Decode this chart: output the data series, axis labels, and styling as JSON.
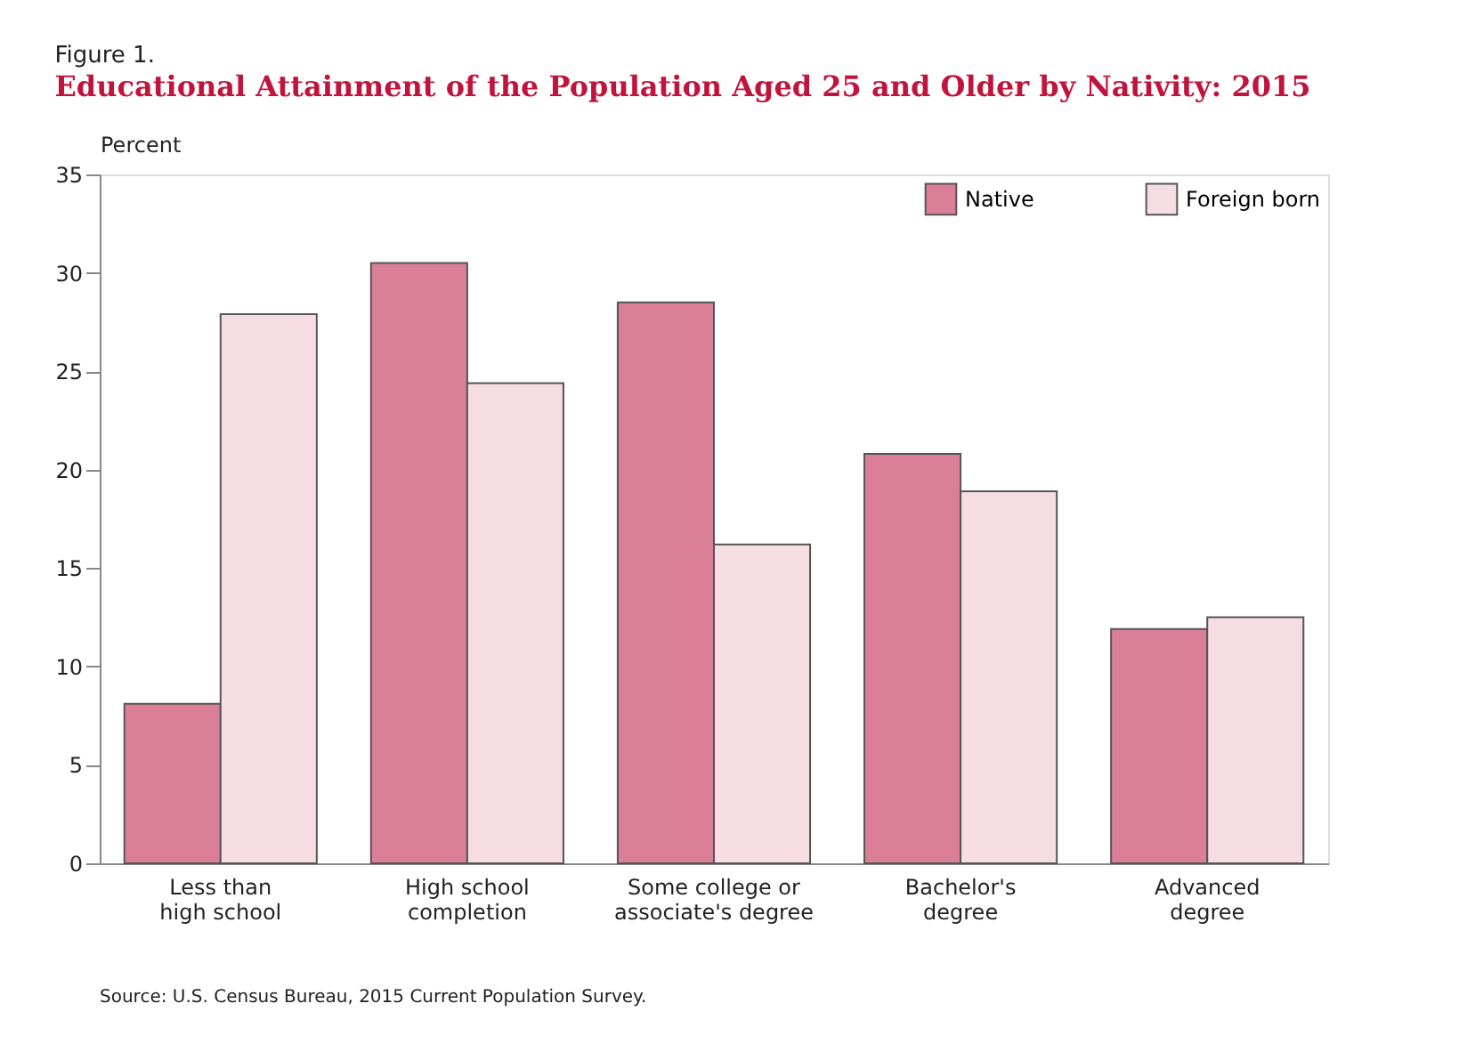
{
  "chart_data": {
    "type": "bar",
    "title": "Educational Attainment of the Population Aged 25 and Older by Nativity: 2015",
    "ylabel": "Percent",
    "categories": [
      "Less than\nhigh school",
      "High school\ncompletion",
      "Some college or\nassociate's degree",
      "Bachelor's\ndegree",
      "Advanced\ndegree"
    ],
    "series": [
      {
        "name": "Native",
        "color": "#db7f99",
        "values": [
          8.1,
          30.5,
          28.5,
          20.8,
          11.9
        ]
      },
      {
        "name": "Foreign born",
        "color": "#f6dde4",
        "values": [
          27.9,
          24.4,
          16.2,
          18.9,
          12.5
        ]
      }
    ],
    "ylim": [
      0,
      35
    ],
    "yticks": [
      0,
      5,
      10,
      15,
      20,
      25,
      30,
      35
    ],
    "grid": false,
    "legend": "top right",
    "annotations": [
      "Figure 1.",
      "Source: U.S. Census Bureau, 2015 Current Population Survey."
    ]
  }
}
